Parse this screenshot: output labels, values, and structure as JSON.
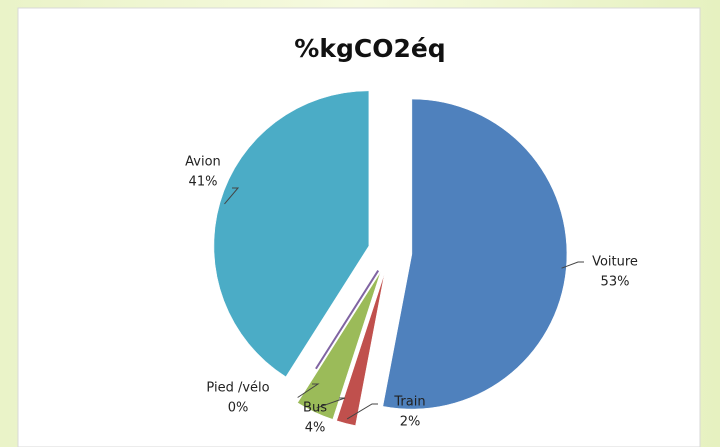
{
  "chart_data": {
    "type": "pie",
    "title": "%kgCO2éq",
    "categories": [
      "Voiture",
      "Train",
      "Bus",
      "Pied /vélo",
      "Avion"
    ],
    "values": [
      53,
      2,
      4,
      0,
      41
    ],
    "value_labels": [
      "53%",
      "2%",
      "4%",
      "0%",
      "41%"
    ],
    "colors": [
      "#4f81bd",
      "#c0504d",
      "#9bbb59",
      "#8064a2",
      "#4bacc6"
    ]
  }
}
